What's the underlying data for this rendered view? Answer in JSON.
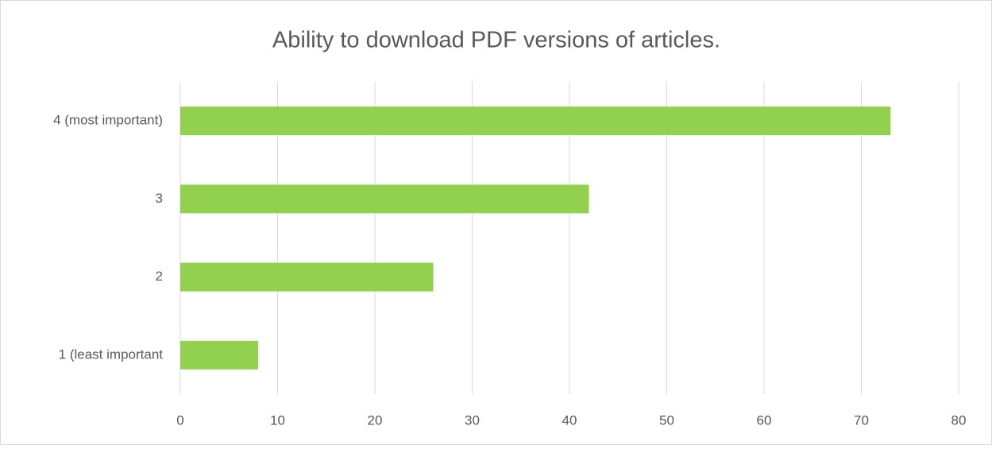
{
  "chart_data": {
    "type": "bar",
    "orientation": "horizontal",
    "title": "Ability to download PDF versions of articles.",
    "categories": [
      "4 (most important)",
      "3",
      "2",
      "1 (least important"
    ],
    "values": [
      73,
      42,
      26,
      8
    ],
    "color": "#92d050",
    "xlim": [
      0,
      80
    ],
    "xticks": [
      0,
      10,
      20,
      30,
      40,
      50,
      60,
      70,
      80
    ],
    "grid": true
  }
}
